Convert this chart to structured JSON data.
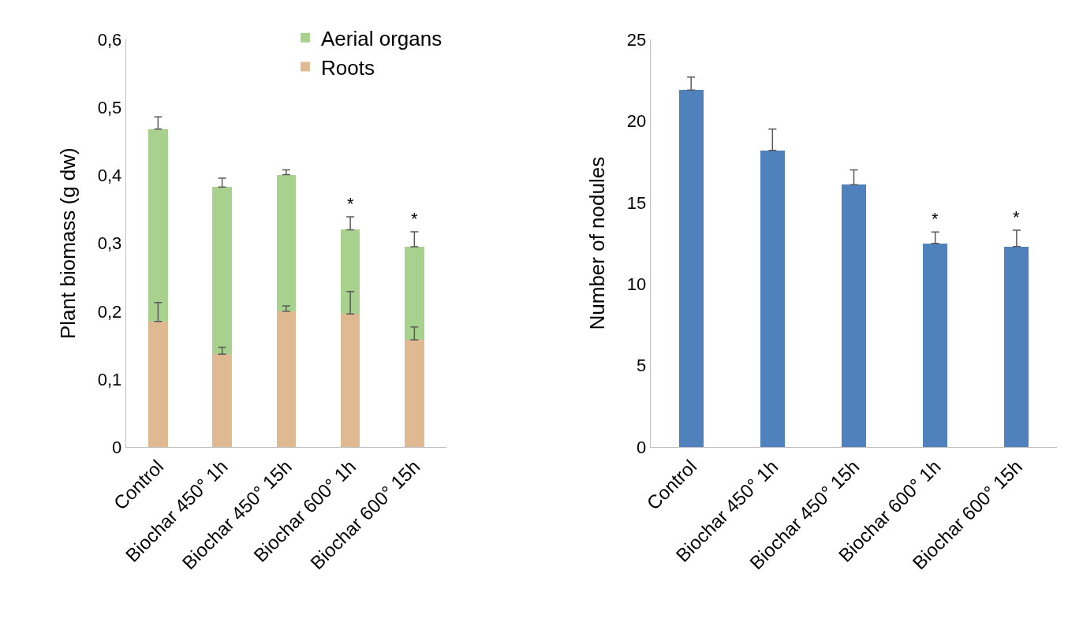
{
  "chart_data": [
    {
      "type": "bar",
      "stacked": true,
      "ylabel": "Plant biomass (g dw)",
      "categories": [
        "Control",
        "Biochar 450° 1h",
        "Biochar 450° 15h",
        "Biochar 600° 1h",
        "Biochar 600° 15h"
      ],
      "series": [
        {
          "name": "Roots",
          "color": "#deb992",
          "values": [
            0.185,
            0.137,
            0.2,
            0.196,
            0.158
          ],
          "errors": [
            [
              0.185,
              0.213
            ],
            [
              0.137,
              0.147
            ],
            [
              0.2,
              0.208
            ],
            [
              0.196,
              0.229
            ],
            [
              0.158,
              0.177
            ]
          ]
        },
        {
          "name": "Aerial organs",
          "color": "#a9d18e",
          "values": [
            0.283,
            0.246,
            0.201,
            0.124,
            0.137
          ],
          "errors": [
            [
              0.468,
              0.486
            ],
            [
              0.383,
              0.396
            ],
            [
              0.401,
              0.408
            ],
            [
              0.32,
              0.339
            ],
            [
              0.295,
              0.317
            ]
          ]
        }
      ],
      "ylim": [
        0,
        0.6
      ],
      "yticks": [
        0,
        {
          "value": 0.1,
          "label": "0,1"
        },
        {
          "value": 0.2,
          "label": "0,2"
        },
        {
          "value": 0.3,
          "label": "0,3"
        },
        {
          "value": 0.4,
          "label": "0,4"
        },
        {
          "value": 0.5,
          "label": "0,5"
        },
        {
          "value": 0.6,
          "label": "0,6"
        }
      ],
      "annotations": [
        {
          "text": "*",
          "x": "Biochar 600° 1h",
          "y": 0.339
        },
        {
          "text": "*",
          "x": "Biochar 600° 15h",
          "y": 0.317
        }
      ],
      "grid": false,
      "legend": "top right"
    },
    {
      "type": "bar",
      "ylabel": "Number of nodules",
      "categories": [
        "Control",
        "Biochar 450° 1h",
        "Biochar 450° 15h",
        "Biochar 600° 1h",
        "Biochar 600° 15h"
      ],
      "series": [
        {
          "color": "#4f81bd",
          "values": [
            21.9,
            18.2,
            16.1,
            12.5,
            12.3
          ],
          "errors": [
            [
              21.9,
              22.7
            ],
            [
              18.2,
              19.5
            ],
            [
              16.1,
              17.0
            ],
            [
              12.5,
              13.2
            ],
            [
              12.3,
              13.3
            ]
          ]
        }
      ],
      "ylim": [
        0,
        25
      ],
      "yticks": [
        0,
        5,
        10,
        15,
        20,
        25
      ],
      "annotations": [
        {
          "text": "*",
          "x": "Biochar 600° 1h",
          "y": 13.2
        },
        {
          "text": "*",
          "x": "Biochar 600° 15h",
          "y": 13.3
        }
      ],
      "grid": false,
      "legend": false
    }
  ]
}
